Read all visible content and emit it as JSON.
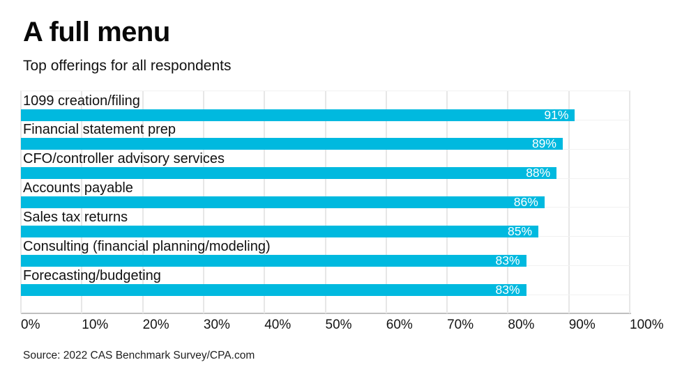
{
  "header": {
    "title": "A full menu",
    "subtitle": "Top offerings for all respondents"
  },
  "footer": {
    "source": "Source: 2022 CAS Benchmark Survey/CPA.com"
  },
  "colors": {
    "bar": "#00b9df",
    "value_label": "#ffffff",
    "gridline": "#e7e7e7",
    "axis_line": "#bfbfbf",
    "text": "#111111",
    "background": "#ffffff"
  },
  "chart_data": {
    "type": "bar",
    "orientation": "horizontal",
    "title": "A full menu",
    "subtitle": "Top offerings for all respondents",
    "categories": [
      "1099 creation/filing",
      "Financial statement prep",
      "CFO/controller advisory services",
      "Accounts payable",
      "Sales tax returns",
      "Consulting (financial planning/modeling)",
      "Forecasting/budgeting"
    ],
    "values": [
      91,
      89,
      88,
      86,
      85,
      83,
      83
    ],
    "value_labels": [
      "91%",
      "89%",
      "88%",
      "86%",
      "85%",
      "83%",
      "83%"
    ],
    "xlabel": "",
    "ylabel": "",
    "xlim": [
      0,
      100
    ],
    "x_tick_values": [
      0,
      10,
      20,
      30,
      40,
      50,
      60,
      70,
      80,
      90,
      100
    ],
    "x_tick_labels": [
      "0%",
      "10%",
      "20%",
      "30%",
      "40%",
      "50%",
      "60%",
      "70%",
      "80%",
      "90%",
      "100%"
    ],
    "grid": "vertical",
    "legend": false,
    "value_label_position": "inside-end",
    "source": "Source: 2022 CAS Benchmark Survey/CPA.com"
  }
}
